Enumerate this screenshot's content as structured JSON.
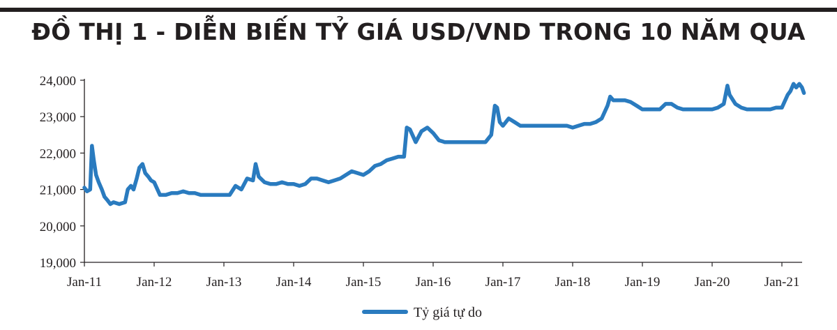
{
  "chart_data": {
    "type": "line",
    "title": "ĐỒ THỊ 1 - DIỄN BIẾN TỶ GIÁ USD/VND TRONG 10 NĂM QUA",
    "xlabel": "",
    "ylabel": "",
    "ylim": [
      19000,
      24000
    ],
    "y_ticks": [
      19000,
      20000,
      21000,
      22000,
      23000,
      24000
    ],
    "y_tick_labels": [
      "19,000",
      "20,000",
      "21,000",
      "22,000",
      "23,000",
      "24,000"
    ],
    "x_range": [
      "2011-01",
      "2021-05"
    ],
    "x_ticks": [
      "2011-01",
      "2012-01",
      "2013-01",
      "2014-01",
      "2015-01",
      "2016-01",
      "2017-01",
      "2018-01",
      "2019-01",
      "2020-01",
      "2021-01"
    ],
    "x_tick_labels": [
      "Jan-11",
      "Jan-12",
      "Jan-13",
      "Jan-14",
      "Jan-15",
      "Jan-16",
      "Jan-17",
      "Jan-18",
      "Jan-19",
      "Jan-20",
      "Jan-21"
    ],
    "grid": false,
    "legend_position": "bottom-center",
    "series_color": "#2a7bbf",
    "series": [
      {
        "name": "Tỷ giá tự do",
        "points": [
          [
            "2011-01-01",
            21050
          ],
          [
            "2011-01-15",
            20950
          ],
          [
            "2011-02-01",
            21000
          ],
          [
            "2011-02-10",
            22200
          ],
          [
            "2011-02-20",
            21800
          ],
          [
            "2011-03-01",
            21400
          ],
          [
            "2011-03-15",
            21200
          ],
          [
            "2011-04-01",
            21000
          ],
          [
            "2011-04-15",
            20800
          ],
          [
            "2011-05-01",
            20700
          ],
          [
            "2011-05-15",
            20600
          ],
          [
            "2011-06-01",
            20650
          ],
          [
            "2011-07-01",
            20600
          ],
          [
            "2011-08-01",
            20650
          ],
          [
            "2011-08-15",
            21000
          ],
          [
            "2011-09-01",
            21100
          ],
          [
            "2011-09-15",
            21000
          ],
          [
            "2011-10-01",
            21300
          ],
          [
            "2011-10-15",
            21600
          ],
          [
            "2011-11-01",
            21700
          ],
          [
            "2011-11-15",
            21450
          ],
          [
            "2011-12-01",
            21350
          ],
          [
            "2011-12-15",
            21250
          ],
          [
            "2012-01-01",
            21200
          ],
          [
            "2012-02-01",
            20850
          ],
          [
            "2012-03-01",
            20850
          ],
          [
            "2012-04-01",
            20900
          ],
          [
            "2012-05-01",
            20900
          ],
          [
            "2012-06-01",
            20950
          ],
          [
            "2012-07-01",
            20900
          ],
          [
            "2012-08-01",
            20900
          ],
          [
            "2012-09-01",
            20850
          ],
          [
            "2012-10-01",
            20850
          ],
          [
            "2012-11-01",
            20850
          ],
          [
            "2012-12-01",
            20850
          ],
          [
            "2013-01-01",
            20850
          ],
          [
            "2013-02-01",
            20850
          ],
          [
            "2013-03-01",
            21100
          ],
          [
            "2013-04-01",
            21000
          ],
          [
            "2013-05-01",
            21300
          ],
          [
            "2013-06-01",
            21250
          ],
          [
            "2013-06-15",
            21700
          ],
          [
            "2013-07-01",
            21350
          ],
          [
            "2013-08-01",
            21200
          ],
          [
            "2013-09-01",
            21150
          ],
          [
            "2013-10-01",
            21150
          ],
          [
            "2013-11-01",
            21200
          ],
          [
            "2013-12-01",
            21150
          ],
          [
            "2014-01-01",
            21150
          ],
          [
            "2014-02-01",
            21100
          ],
          [
            "2014-03-01",
            21150
          ],
          [
            "2014-04-01",
            21300
          ],
          [
            "2014-05-01",
            21300
          ],
          [
            "2014-06-01",
            21250
          ],
          [
            "2014-07-01",
            21200
          ],
          [
            "2014-08-01",
            21250
          ],
          [
            "2014-09-01",
            21300
          ],
          [
            "2014-10-01",
            21400
          ],
          [
            "2014-11-01",
            21500
          ],
          [
            "2014-12-01",
            21450
          ],
          [
            "2015-01-01",
            21400
          ],
          [
            "2015-02-01",
            21500
          ],
          [
            "2015-03-01",
            21650
          ],
          [
            "2015-04-01",
            21700
          ],
          [
            "2015-05-01",
            21800
          ],
          [
            "2015-06-01",
            21850
          ],
          [
            "2015-07-01",
            21900
          ],
          [
            "2015-08-01",
            21900
          ],
          [
            "2015-08-15",
            22700
          ],
          [
            "2015-09-01",
            22650
          ],
          [
            "2015-10-01",
            22300
          ],
          [
            "2015-11-01",
            22600
          ],
          [
            "2015-12-01",
            22700
          ],
          [
            "2016-01-01",
            22550
          ],
          [
            "2016-02-01",
            22350
          ],
          [
            "2016-03-01",
            22300
          ],
          [
            "2016-04-01",
            22300
          ],
          [
            "2016-05-01",
            22300
          ],
          [
            "2016-06-01",
            22300
          ],
          [
            "2016-07-01",
            22300
          ],
          [
            "2016-08-01",
            22300
          ],
          [
            "2016-09-01",
            22300
          ],
          [
            "2016-10-01",
            22300
          ],
          [
            "2016-11-01",
            22500
          ],
          [
            "2016-11-20",
            23300
          ],
          [
            "2016-12-01",
            23250
          ],
          [
            "2016-12-15",
            22850
          ],
          [
            "2017-01-01",
            22750
          ],
          [
            "2017-02-01",
            22950
          ],
          [
            "2017-03-01",
            22850
          ],
          [
            "2017-04-01",
            22750
          ],
          [
            "2017-05-01",
            22750
          ],
          [
            "2017-06-01",
            22750
          ],
          [
            "2017-07-01",
            22750
          ],
          [
            "2017-08-01",
            22750
          ],
          [
            "2017-09-01",
            22750
          ],
          [
            "2017-10-01",
            22750
          ],
          [
            "2017-11-01",
            22750
          ],
          [
            "2017-12-01",
            22750
          ],
          [
            "2018-01-01",
            22700
          ],
          [
            "2018-02-01",
            22750
          ],
          [
            "2018-03-01",
            22800
          ],
          [
            "2018-04-01",
            22800
          ],
          [
            "2018-05-01",
            22850
          ],
          [
            "2018-06-01",
            22950
          ],
          [
            "2018-07-01",
            23300
          ],
          [
            "2018-07-15",
            23550
          ],
          [
            "2018-08-01",
            23450
          ],
          [
            "2018-09-01",
            23450
          ],
          [
            "2018-10-01",
            23450
          ],
          [
            "2018-11-01",
            23400
          ],
          [
            "2018-12-01",
            23300
          ],
          [
            "2019-01-01",
            23200
          ],
          [
            "2019-02-01",
            23200
          ],
          [
            "2019-03-01",
            23200
          ],
          [
            "2019-04-01",
            23200
          ],
          [
            "2019-05-01",
            23350
          ],
          [
            "2019-06-01",
            23350
          ],
          [
            "2019-07-01",
            23250
          ],
          [
            "2019-08-01",
            23200
          ],
          [
            "2019-09-01",
            23200
          ],
          [
            "2019-10-01",
            23200
          ],
          [
            "2019-11-01",
            23200
          ],
          [
            "2019-12-01",
            23200
          ],
          [
            "2020-01-01",
            23200
          ],
          [
            "2020-02-01",
            23250
          ],
          [
            "2020-03-01",
            23350
          ],
          [
            "2020-03-20",
            23850
          ],
          [
            "2020-04-01",
            23600
          ],
          [
            "2020-05-01",
            23350
          ],
          [
            "2020-06-01",
            23250
          ],
          [
            "2020-07-01",
            23200
          ],
          [
            "2020-08-01",
            23200
          ],
          [
            "2020-09-01",
            23200
          ],
          [
            "2020-10-01",
            23200
          ],
          [
            "2020-11-01",
            23200
          ],
          [
            "2020-12-01",
            23250
          ],
          [
            "2021-01-01",
            23250
          ],
          [
            "2021-02-01",
            23600
          ],
          [
            "2021-02-15",
            23700
          ],
          [
            "2021-03-01",
            23900
          ],
          [
            "2021-03-15",
            23800
          ],
          [
            "2021-04-01",
            23900
          ],
          [
            "2021-04-15",
            23800
          ],
          [
            "2021-04-25",
            23650
          ]
        ]
      }
    ]
  }
}
